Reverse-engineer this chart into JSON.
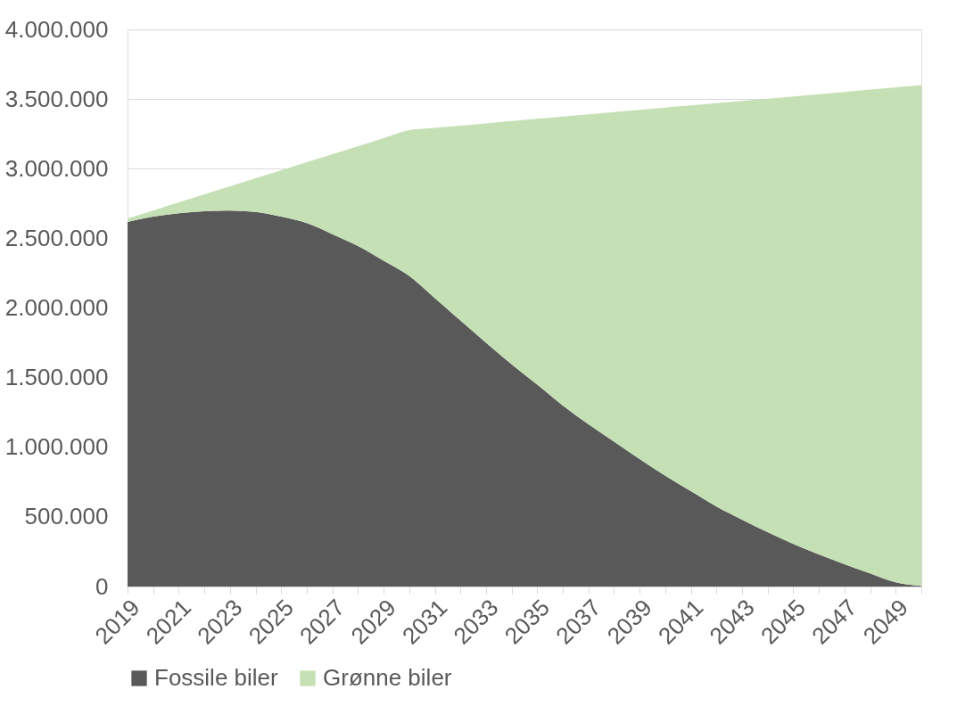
{
  "chart_data": {
    "type": "area",
    "stacked": true,
    "legend": "bottom",
    "grid": "y",
    "categories": [
      "2019",
      null,
      "2021",
      null,
      "2023",
      null,
      "2025",
      null,
      "2027",
      null,
      "2029",
      null,
      "2031",
      null,
      "2033",
      null,
      "2035",
      null,
      "2037",
      null,
      "2039",
      null,
      "2041",
      null,
      "2043",
      null,
      "2045",
      null,
      "2047",
      null,
      "2049",
      null
    ],
    "ylim": [
      0,
      4000000
    ],
    "yticks": [
      {
        "value": 0,
        "label": "0"
      },
      {
        "value": 500000,
        "label": "500.000"
      },
      {
        "value": 1000000,
        "label": "1.000.000"
      },
      {
        "value": 1500000,
        "label": "1.500.000"
      },
      {
        "value": 2000000,
        "label": "2.000.000"
      },
      {
        "value": 2500000,
        "label": "2.500.000"
      },
      {
        "value": 3000000,
        "label": "3.000.000"
      },
      {
        "value": 3500000,
        "label": "3.500.000"
      },
      {
        "value": 4000000,
        "label": "4.000.000"
      }
    ],
    "series": [
      {
        "name": "Fossile biler",
        "color": "#595959",
        "values": [
          2617000,
          2656000,
          2680000,
          2695000,
          2700000,
          2690000,
          2656000,
          2610000,
          2530000,
          2445000,
          2340000,
          2230000,
          2070000,
          1910000,
          1750000,
          1595000,
          1450000,
          1300000,
          1165000,
          1040000,
          915000,
          795000,
          685000,
          575000,
          480000,
          390000,
          305000,
          230000,
          160000,
          95000,
          30000,
          5000
        ]
      },
      {
        "name": "Grønne biler",
        "color": "#c5e0b4",
        "values": [
          26000,
          44000,
          78000,
          121000,
          174000,
          241000,
          333000,
          436000,
          574000,
          717000,
          879000,
          1047000,
          1223000,
          1399000,
          1575000,
          1747000,
          1908000,
          2074000,
          2225000,
          2366000,
          2507000,
          2644000,
          2770000,
          2896000,
          3007000,
          3113000,
          3214000,
          3305000,
          3391000,
          3473000,
          3554000,
          3595000
        ]
      }
    ]
  }
}
